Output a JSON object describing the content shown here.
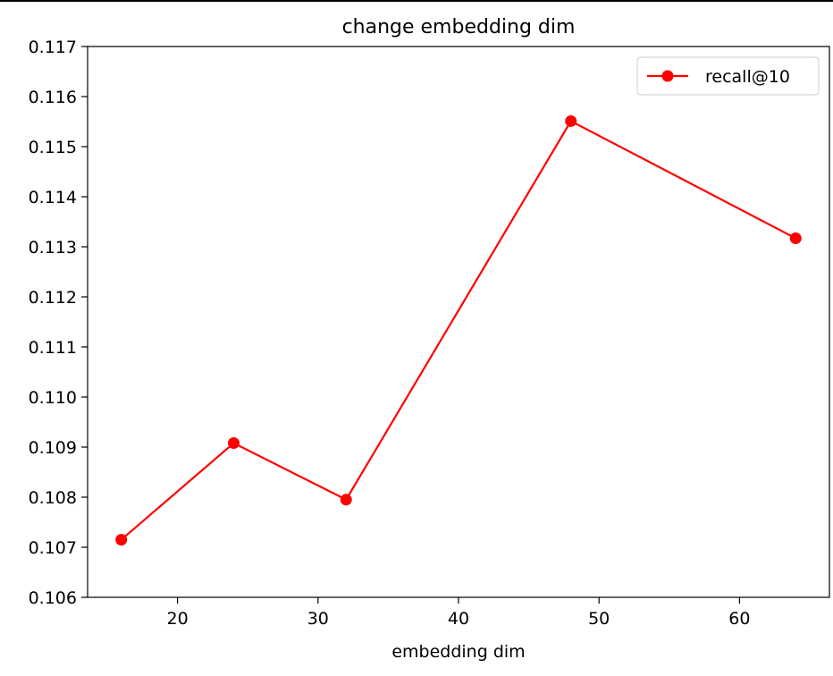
{
  "chart_data": {
    "type": "line",
    "title": "change embedding dim",
    "xlabel": "embedding dim",
    "ylabel": "",
    "xlim": [
      13.6,
      66.4
    ],
    "ylim": [
      0.106,
      0.117
    ],
    "x_ticks": [
      20,
      30,
      40,
      50,
      60
    ],
    "y_ticks": [
      0.106,
      0.107,
      0.108,
      0.109,
      0.11,
      0.111,
      0.112,
      0.113,
      0.114,
      0.115,
      0.116,
      0.117
    ],
    "y_tick_labels": [
      "0.106",
      "0.107",
      "0.108",
      "0.109",
      "0.110",
      "0.111",
      "0.112",
      "0.113",
      "0.114",
      "0.115",
      "0.116",
      "0.117"
    ],
    "grid": false,
    "legend_position": "top-right",
    "series": [
      {
        "name": "recall@10",
        "color": "#ff0000",
        "marker": "circle",
        "x": [
          16,
          24,
          32,
          48,
          64
        ],
        "y": [
          0.10715,
          0.10908,
          0.10795,
          0.11551,
          0.11317
        ]
      }
    ]
  }
}
